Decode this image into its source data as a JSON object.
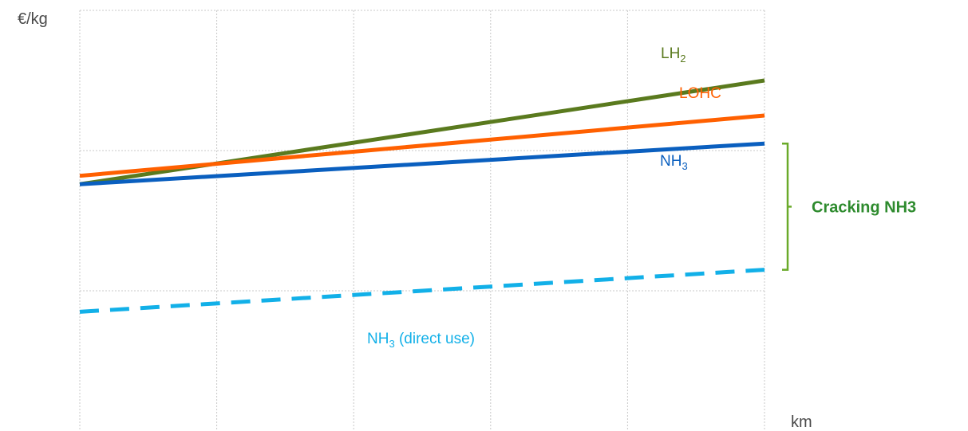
{
  "chart_data": {
    "type": "line",
    "ylabel": "€/kg",
    "xlabel": "km",
    "grid": true,
    "x_grid_count": 5,
    "y_grid_count": 3,
    "xlim": [
      0,
      5
    ],
    "ylim": [
      0,
      3
    ],
    "series": [
      {
        "name": "LH2",
        "label_main": "LH",
        "label_sub": "2",
        "label_suffix": "",
        "color": "#5a7a1e",
        "dashed": false,
        "x": [
          0,
          5
        ],
        "y": [
          1.76,
          2.5
        ]
      },
      {
        "name": "LOHC",
        "label_main": "LOHC",
        "label_sub": "",
        "label_suffix": "",
        "color": "#ff6000",
        "dashed": false,
        "x": [
          0,
          5
        ],
        "y": [
          1.82,
          2.25
        ]
      },
      {
        "name": "NH3",
        "label_main": "NH",
        "label_sub": "3",
        "label_suffix": "",
        "color": "#0a5fbf",
        "dashed": false,
        "x": [
          0,
          5
        ],
        "y": [
          1.76,
          2.05
        ]
      },
      {
        "name": "NH3 (direct use)",
        "label_main": "NH",
        "label_sub": "3",
        "label_suffix": " (direct use)",
        "color": "#12b0e8",
        "dashed": true,
        "x": [
          0,
          5
        ],
        "y": [
          0.85,
          1.15
        ]
      }
    ],
    "annotations": [
      {
        "text": "Cracking NH3",
        "color": "#2e8b2e",
        "bracket_color": "#6aaa2a",
        "y_range": [
          1.15,
          2.05
        ]
      }
    ]
  }
}
